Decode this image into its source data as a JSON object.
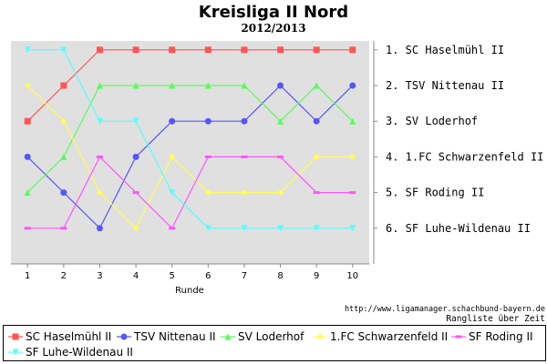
{
  "chart_data": {
    "type": "line",
    "title": "Kreisliga II Nord",
    "subtitle": "2012/2013",
    "xlabel": "Runde",
    "x": [
      1,
      2,
      3,
      4,
      5,
      6,
      7,
      8,
      9,
      10
    ],
    "ylim": [
      7,
      0.75
    ],
    "grid": false,
    "legend": "bottom",
    "rank_labels": [
      "1. SC Haselmühl II",
      "2. TSV Nittenau II",
      "3. SV Loderhof",
      "4. 1.FC Schwarzenfeld II",
      "5. SF Roding II",
      "6. SF Luhe-Wildenau II"
    ],
    "series": [
      {
        "name": "SC Haselmühl II",
        "color": "#ff5555",
        "marker": "square",
        "values": [
          3,
          2,
          1,
          1,
          1,
          1,
          1,
          1,
          1,
          1
        ]
      },
      {
        "name": "TSV Nittenau II",
        "color": "#5555ff",
        "marker": "circle",
        "values": [
          4,
          5,
          6,
          4,
          3,
          3,
          3,
          2,
          3,
          2
        ]
      },
      {
        "name": "SV Loderhof",
        "color": "#55ff55",
        "marker": "triangle-up",
        "values": [
          5,
          4,
          2,
          2,
          2,
          2,
          2,
          3,
          2,
          3
        ]
      },
      {
        "name": "1.FC Schwarzenfeld II",
        "color": "#ffff55",
        "marker": "diamond",
        "values": [
          2,
          3,
          5,
          6,
          4,
          5,
          5,
          5,
          4,
          4
        ]
      },
      {
        "name": "SF Roding II",
        "color": "#ff55ff",
        "marker": "dash",
        "values": [
          6,
          6,
          4,
          5,
          6,
          4,
          4,
          4,
          5,
          5
        ]
      },
      {
        "name": "SF Luhe-Wildenau II",
        "color": "#55ffff",
        "marker": "triangle-down",
        "values": [
          1,
          1,
          3,
          3,
          5,
          6,
          6,
          6,
          6,
          6
        ]
      }
    ]
  },
  "footer": {
    "source": "http://www.ligamanager.schachbund-bayern.de",
    "caption": "Rangliste über Zeit"
  }
}
